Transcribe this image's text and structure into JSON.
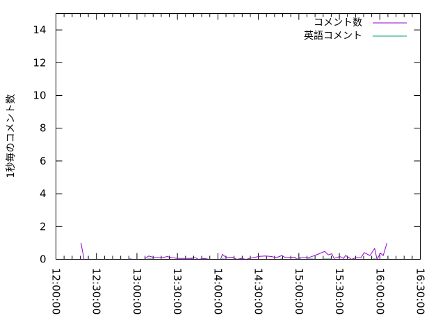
{
  "chart_data": {
    "type": "line",
    "title": "",
    "xlabel": "",
    "ylabel": "1秒毎のコメント数",
    "xlim": [
      "12:00:00",
      "16:30:00"
    ],
    "ylim": [
      0,
      15
    ],
    "x_tick_labels": [
      "12:00:00",
      "12:30:00",
      "13:00:00",
      "13:30:00",
      "14:00:00",
      "14:30:00",
      "15:00:00",
      "15:30:00",
      "16:00:00",
      "16:30:00"
    ],
    "y_tick_labels": [
      "0",
      "2",
      "4",
      "6",
      "8",
      "10",
      "12",
      "14"
    ],
    "grid": false,
    "legend_position": "top-right",
    "series": [
      {
        "name": "コメント数",
        "color": "#9400d3",
        "points": [
          [
            "12:18:30",
            1.0
          ],
          [
            "12:20:50",
            0
          ],
          null,
          [
            "12:54:05",
            0.02
          ],
          [
            "12:56:10",
            0.02
          ],
          null,
          [
            "13:05:20",
            0
          ],
          [
            "13:08:40",
            0.2
          ],
          [
            "13:13:00",
            0.1
          ],
          [
            "13:19:00",
            0.1
          ],
          [
            "13:22:25",
            0.17
          ],
          [
            "13:25:55",
            0.1
          ],
          [
            "13:30:10",
            0.05
          ],
          [
            "13:39:35",
            0.05
          ],
          [
            "13:43:00",
            0.1
          ],
          [
            "13:45:35",
            0
          ],
          [
            "13:50:00",
            0.05
          ],
          [
            "13:53:25",
            0
          ],
          [
            "14:02:00",
            0
          ],
          [
            "14:03:20",
            0.3
          ],
          [
            "14:06:10",
            0.1
          ],
          [
            "14:10:30",
            0.13
          ],
          [
            "14:14:00",
            0
          ],
          [
            "14:17:25",
            0.05
          ],
          [
            "14:20:50",
            0
          ],
          [
            "14:23:25",
            0.05
          ],
          [
            "14:26:00",
            0.1
          ],
          [
            "14:31:05",
            0.18
          ],
          [
            "14:35:25",
            0.2
          ],
          [
            "14:39:40",
            0.17
          ],
          [
            "14:43:10",
            0.1
          ],
          [
            "14:47:30",
            0.23
          ],
          [
            "14:50:00",
            0.1
          ],
          [
            "14:56:55",
            0.13
          ],
          [
            "14:58:35",
            0
          ],
          [
            "15:01:10",
            0.1
          ],
          [
            "15:07:10",
            0.1
          ],
          [
            "15:10:40",
            0.2
          ],
          [
            "15:15:00",
            0.34
          ],
          [
            "15:19:10",
            0.48
          ],
          [
            "15:21:50",
            0.27
          ],
          [
            "15:24:25",
            0.34
          ],
          [
            "15:26:05",
            0.05
          ],
          [
            "15:30:25",
            0.17
          ],
          [
            "15:33:00",
            0.05
          ],
          [
            "15:34:40",
            0.23
          ],
          [
            "15:39:00",
            0
          ],
          [
            "15:42:25",
            0.1
          ],
          [
            "15:45:55",
            0.08
          ],
          [
            "15:48:25",
            0.41
          ],
          [
            "15:52:40",
            0.23
          ],
          [
            "15:56:10",
            0.66
          ],
          [
            "15:57:55",
            0
          ],
          [
            "16:00:30",
            0.37
          ],
          [
            "16:02:30",
            0.23
          ],
          [
            "16:05:20",
            1.0
          ]
        ]
      },
      {
        "name": "英語コメント",
        "color": "#009e73",
        "points": [
          [
            "13:07:50",
            0.02
          ],
          [
            "13:11:50",
            0.02
          ],
          null,
          [
            "13:39:35",
            0.02
          ],
          [
            "13:42:10",
            0.02
          ],
          null,
          [
            "14:02:50",
            0.02
          ],
          [
            "14:05:00",
            0.02
          ],
          null,
          [
            "14:46:20",
            0.02
          ],
          [
            "14:48:00",
            0.02
          ],
          null,
          [
            "14:59:30",
            0.02
          ],
          [
            "15:01:40",
            0.02
          ],
          null,
          [
            "15:06:25",
            0.02
          ],
          [
            "15:10:40",
            0.02
          ],
          null,
          [
            "15:18:25",
            0.02
          ],
          [
            "15:24:25",
            0.02
          ],
          null,
          [
            "15:55:00",
            0.02
          ],
          [
            "15:57:00",
            0.02
          ]
        ]
      }
    ]
  }
}
